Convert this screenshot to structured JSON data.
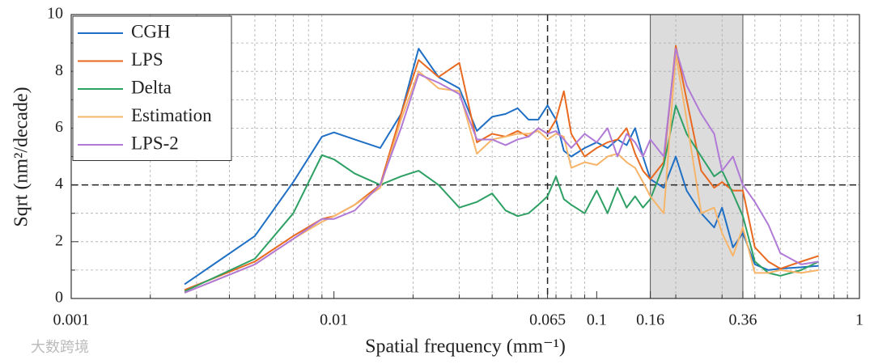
{
  "chart_data": {
    "type": "line",
    "x_label": "Spatial frequency (mm⁻¹)",
    "y_label": "Sqrt (nm²/decade)",
    "log_x": true,
    "grid": true,
    "legend_position": "upper left",
    "xlim": [
      0.001,
      1
    ],
    "ylim": [
      0,
      10
    ],
    "xticks": [
      0.001,
      0.01,
      0.065,
      0.1,
      0.16,
      0.36,
      1
    ],
    "yticks": [
      0,
      2,
      4,
      6,
      8,
      10
    ],
    "shaded_region": [
      0.16,
      0.36
    ],
    "reference_x": 0.065,
    "reference_y": 4,
    "x": [
      0.0027,
      0.005,
      0.007,
      0.009,
      0.01,
      0.012,
      0.015,
      0.018,
      0.021,
      0.025,
      0.03,
      0.035,
      0.04,
      0.045,
      0.05,
      0.055,
      0.06,
      0.065,
      0.07,
      0.075,
      0.08,
      0.09,
      0.1,
      0.11,
      0.12,
      0.13,
      0.14,
      0.15,
      0.16,
      0.18,
      0.2,
      0.22,
      0.25,
      0.28,
      0.3,
      0.33,
      0.36,
      0.4,
      0.45,
      0.5,
      0.6,
      0.7
    ],
    "series": [
      {
        "name": "CGH",
        "color": "#1f6fc5",
        "values": [
          0.5,
          2.2,
          4.1,
          5.7,
          5.85,
          5.6,
          5.3,
          6.5,
          8.8,
          7.8,
          7.4,
          5.9,
          6.4,
          6.5,
          6.7,
          6.3,
          6.3,
          6.8,
          6.3,
          5.2,
          5.0,
          5.3,
          5.5,
          5.3,
          5.6,
          5.4,
          6.0,
          5.0,
          4.2,
          3.9,
          5.0,
          3.8,
          3.0,
          2.5,
          3.2,
          1.8,
          2.3,
          1.2,
          1.0,
          1.05,
          1.1,
          1.15
        ]
      },
      {
        "name": "LPS",
        "color": "#e8691f",
        "values": [
          0.3,
          1.3,
          2.2,
          2.8,
          2.9,
          3.3,
          4.0,
          6.5,
          8.4,
          7.8,
          8.3,
          5.5,
          5.8,
          5.7,
          5.9,
          5.7,
          6.0,
          5.8,
          6.3,
          7.3,
          5.8,
          5.0,
          5.3,
          5.5,
          5.6,
          6.0,
          5.1,
          4.5,
          4.2,
          4.8,
          8.9,
          7.0,
          4.5,
          3.9,
          4.1,
          3.8,
          3.8,
          1.8,
          1.3,
          1.05,
          1.3,
          1.5
        ]
      },
      {
        "name": "Delta",
        "color": "#2ea064",
        "values": [
          0.25,
          1.4,
          3.0,
          5.05,
          4.9,
          4.4,
          4.0,
          4.3,
          4.5,
          4.0,
          3.2,
          3.4,
          3.7,
          3.1,
          2.9,
          3.0,
          3.3,
          3.6,
          4.3,
          3.5,
          3.3,
          3.0,
          3.8,
          3.0,
          3.9,
          3.2,
          3.6,
          3.2,
          3.5,
          4.7,
          6.8,
          5.8,
          5.0,
          4.3,
          4.5,
          3.7,
          2.9,
          1.3,
          0.9,
          0.8,
          1.0,
          1.3
        ]
      },
      {
        "name": "Estimation",
        "color": "#f7b56a",
        "values": [
          0.2,
          1.2,
          2.1,
          2.7,
          2.9,
          3.3,
          3.9,
          6.3,
          8.0,
          7.4,
          7.3,
          5.1,
          5.6,
          5.7,
          5.8,
          5.8,
          5.9,
          5.6,
          5.8,
          5.7,
          4.6,
          4.8,
          4.7,
          5.0,
          5.1,
          4.8,
          4.6,
          4.1,
          3.6,
          3.0,
          8.6,
          6.3,
          3.0,
          3.2,
          2.3,
          1.5,
          2.5,
          0.9,
          0.9,
          1.0,
          0.9,
          1.0
        ]
      },
      {
        "name": "LPS-2",
        "color": "#b07ad6",
        "values": [
          0.2,
          1.2,
          2.1,
          2.8,
          2.8,
          3.1,
          4.0,
          6.0,
          7.9,
          7.6,
          7.2,
          5.6,
          5.6,
          5.4,
          5.6,
          5.7,
          6.0,
          5.8,
          5.9,
          5.6,
          5.3,
          5.8,
          5.5,
          6.0,
          5.0,
          5.8,
          5.5,
          5.0,
          5.6,
          5.0,
          8.8,
          7.5,
          6.5,
          5.8,
          4.5,
          5.0,
          4.0,
          3.4,
          2.6,
          1.6,
          1.2,
          1.3
        ]
      }
    ]
  },
  "watermark": "大数跨境"
}
